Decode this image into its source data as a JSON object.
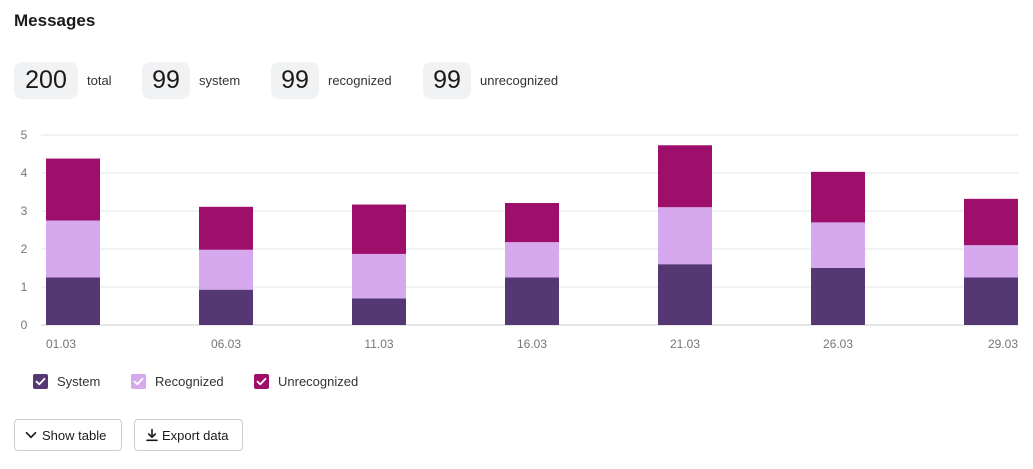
{
  "title": "Messages",
  "stats": [
    {
      "value": "200",
      "label": "total"
    },
    {
      "value": "99",
      "label": "system"
    },
    {
      "value": "99",
      "label": "recognized"
    },
    {
      "value": "99",
      "label": "unrecognized"
    }
  ],
  "legend": [
    {
      "label": "System",
      "color": "#553774",
      "checked": true
    },
    {
      "label": "Recognized",
      "color": "#d6a8ee",
      "checked": true
    },
    {
      "label": "Unrecognized",
      "color": "#9e0e6b",
      "checked": true
    }
  ],
  "buttons": {
    "show_table": {
      "label": "Show table",
      "icon": "chevron-down-icon"
    },
    "export_data": {
      "label": "Export data",
      "icon": "download-icon"
    }
  },
  "chart_data": {
    "type": "bar",
    "stacked": true,
    "categories": [
      "01.03",
      "06.03",
      "11.03",
      "16.03",
      "21.03",
      "26.03",
      "29.03"
    ],
    "series": [
      {
        "name": "System",
        "color": "#553774",
        "values": [
          1.25,
          0.93,
          0.7,
          1.25,
          1.6,
          1.5,
          1.25
        ]
      },
      {
        "name": "Recognized",
        "color": "#d6a8ee",
        "values": [
          1.5,
          1.05,
          1.17,
          0.93,
          1.5,
          1.2,
          0.85
        ]
      },
      {
        "name": "Unrecognized",
        "color": "#9e0e6b",
        "values": [
          1.63,
          1.13,
          1.3,
          1.03,
          1.63,
          1.33,
          1.22
        ]
      }
    ],
    "ylim": [
      0,
      5
    ],
    "yticks": [
      "0",
      "1",
      "2",
      "3",
      "4",
      "5"
    ],
    "grid": true,
    "legend_position": "bottom-left"
  }
}
